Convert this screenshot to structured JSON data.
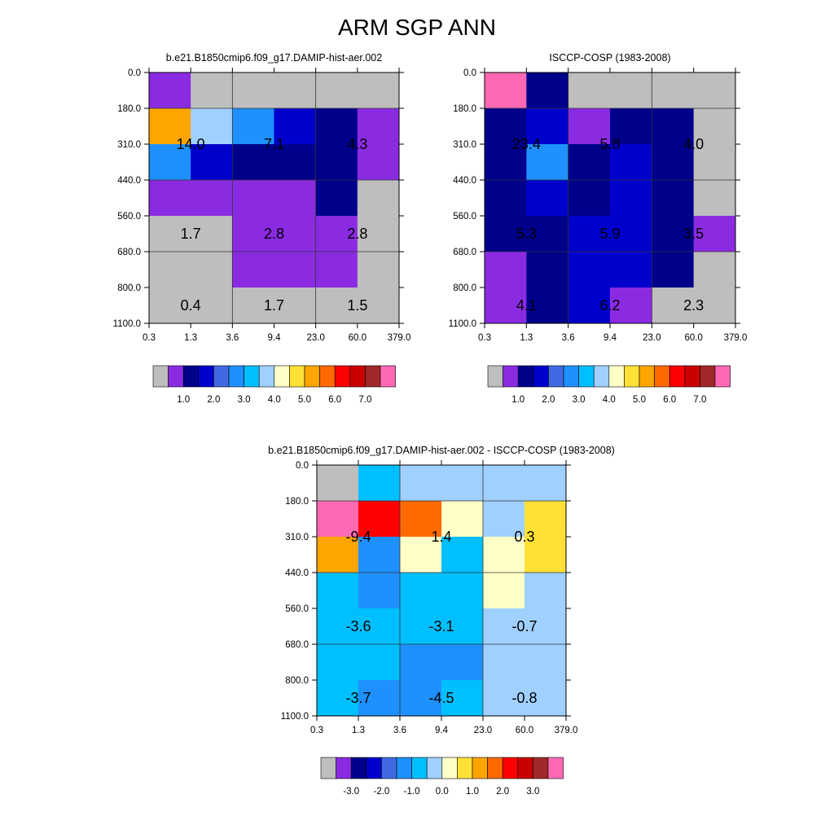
{
  "title": "ARM SGP ANN",
  "colors": {
    "abs_scale": [
      "#bebebe",
      "#8a2be2",
      "#00008b",
      "#0000cd",
      "#4169e1",
      "#1e90ff",
      "#00bfff",
      "#a0d0ff",
      "#ffffc8",
      "#ffe135",
      "#ffa500",
      "#ff6a00",
      "#ff0000",
      "#c80000",
      "#a02828",
      "#ff69b4"
    ],
    "diff_scale": [
      "#bebebe",
      "#8a2be2",
      "#00008b",
      "#0000cd",
      "#4169e1",
      "#1e90ff",
      "#00bfff",
      "#a0d0ff",
      "#ffffc8",
      "#ffe135",
      "#ffa500",
      "#ff6a00",
      "#ff0000",
      "#c80000",
      "#a02828",
      "#ff69b4"
    ]
  },
  "chart_data": [
    {
      "type": "heatmap",
      "title": "b.e21.B1850cmip6.f09_g17.DAMIP-hist-aer.002",
      "x_ticks": [
        "0.3",
        "1.3",
        "3.6",
        "9.4",
        "23.0",
        "60.0",
        "379.0"
      ],
      "y_ticks": [
        "0.0",
        "180.0",
        "310.0",
        "440.0",
        "560.0",
        "680.0",
        "800.0",
        "1100.0"
      ],
      "cells": [
        [
          1,
          0,
          0,
          0,
          0,
          0
        ],
        [
          10,
          7,
          5,
          3,
          2,
          1
        ],
        [
          5,
          3,
          2,
          2,
          2,
          1
        ],
        [
          1,
          1,
          1,
          1,
          2,
          0
        ],
        [
          0,
          0,
          1,
          1,
          1,
          0
        ],
        [
          0,
          0,
          1,
          1,
          1,
          0
        ],
        [
          0,
          0,
          0,
          0,
          0,
          0
        ]
      ],
      "annotations": [
        {
          "row": 1.5,
          "col": 1,
          "label": "14.0"
        },
        {
          "row": 1.5,
          "col": 3,
          "label": "7.1"
        },
        {
          "row": 1.5,
          "col": 5,
          "label": "4.3"
        },
        {
          "row": 4,
          "col": 1,
          "label": "1.7"
        },
        {
          "row": 4,
          "col": 3,
          "label": "2.8"
        },
        {
          "row": 4,
          "col": 5,
          "label": "2.8"
        },
        {
          "row": 6,
          "col": 1,
          "label": "0.4"
        },
        {
          "row": 6,
          "col": 3,
          "label": "1.7"
        },
        {
          "row": 6,
          "col": 5,
          "label": "1.5"
        }
      ],
      "colorbar_labels": [
        "1.0",
        "2.0",
        "3.0",
        "4.0",
        "5.0",
        "6.0",
        "7.0"
      ]
    },
    {
      "type": "heatmap",
      "title": "ISCCP-COSP (1983-2008)",
      "x_ticks": [
        "0.3",
        "1.3",
        "3.6",
        "9.4",
        "23.0",
        "60.0",
        "379.0"
      ],
      "y_ticks": [
        "0.0",
        "180.0",
        "310.0",
        "440.0",
        "560.0",
        "680.0",
        "800.0",
        "1100.0"
      ],
      "cells": [
        [
          15,
          2,
          0,
          0,
          0,
          0
        ],
        [
          2,
          3,
          1,
          2,
          2,
          0
        ],
        [
          2,
          5,
          2,
          3,
          2,
          0
        ],
        [
          2,
          3,
          2,
          3,
          2,
          0
        ],
        [
          2,
          2,
          3,
          3,
          2,
          1
        ],
        [
          1,
          2,
          3,
          3,
          2,
          0
        ],
        [
          1,
          2,
          3,
          1,
          0,
          0
        ]
      ],
      "annotations": [
        {
          "row": 1.5,
          "col": 1,
          "label": "23.4"
        },
        {
          "row": 1.5,
          "col": 3,
          "label": "5.8"
        },
        {
          "row": 1.5,
          "col": 5,
          "label": "4.0"
        },
        {
          "row": 4,
          "col": 1,
          "label": "5.3"
        },
        {
          "row": 4,
          "col": 3,
          "label": "5.9"
        },
        {
          "row": 4,
          "col": 5,
          "label": "3.5"
        },
        {
          "row": 6,
          "col": 1,
          "label": "4.1"
        },
        {
          "row": 6,
          "col": 3,
          "label": "6.2"
        },
        {
          "row": 6,
          "col": 5,
          "label": "2.3"
        }
      ],
      "colorbar_labels": [
        "1.0",
        "2.0",
        "3.0",
        "4.0",
        "5.0",
        "6.0",
        "7.0"
      ]
    },
    {
      "type": "heatmap",
      "title": "b.e21.B1850cmip6.f09_g17.DAMIP-hist-aer.002 - ISCCP-COSP (1983-2008)",
      "x_ticks": [
        "0.3",
        "1.3",
        "3.6",
        "9.4",
        "23.0",
        "60.0",
        "379.0"
      ],
      "y_ticks": [
        "0.0",
        "180.0",
        "310.0",
        "440.0",
        "560.0",
        "680.0",
        "800.0",
        "1100.0"
      ],
      "cells": [
        [
          0,
          6,
          7,
          7,
          7,
          7
        ],
        [
          15,
          12,
          11,
          8,
          7,
          9
        ],
        [
          10,
          5,
          8,
          6,
          8,
          9
        ],
        [
          6,
          5,
          6,
          6,
          8,
          7
        ],
        [
          6,
          6,
          6,
          6,
          7,
          7
        ],
        [
          6,
          6,
          5,
          5,
          7,
          7
        ],
        [
          6,
          5,
          5,
          6,
          7,
          7
        ]
      ],
      "annotations": [
        {
          "row": 1.5,
          "col": 1,
          "label": "-9.4"
        },
        {
          "row": 1.5,
          "col": 3,
          "label": "1.4"
        },
        {
          "row": 1.5,
          "col": 5,
          "label": "0.3"
        },
        {
          "row": 4,
          "col": 1,
          "label": "-3.6"
        },
        {
          "row": 4,
          "col": 3,
          "label": "-3.1"
        },
        {
          "row": 4,
          "col": 5,
          "label": "-0.7"
        },
        {
          "row": 6,
          "col": 1,
          "label": "-3.7"
        },
        {
          "row": 6,
          "col": 3,
          "label": "-4.5"
        },
        {
          "row": 6,
          "col": 5,
          "label": "-0.8"
        }
      ],
      "colorbar_labels": [
        "-3.0",
        "-2.0",
        "-1.0",
        "0.0",
        "1.0",
        "2.0",
        "3.0"
      ]
    }
  ]
}
